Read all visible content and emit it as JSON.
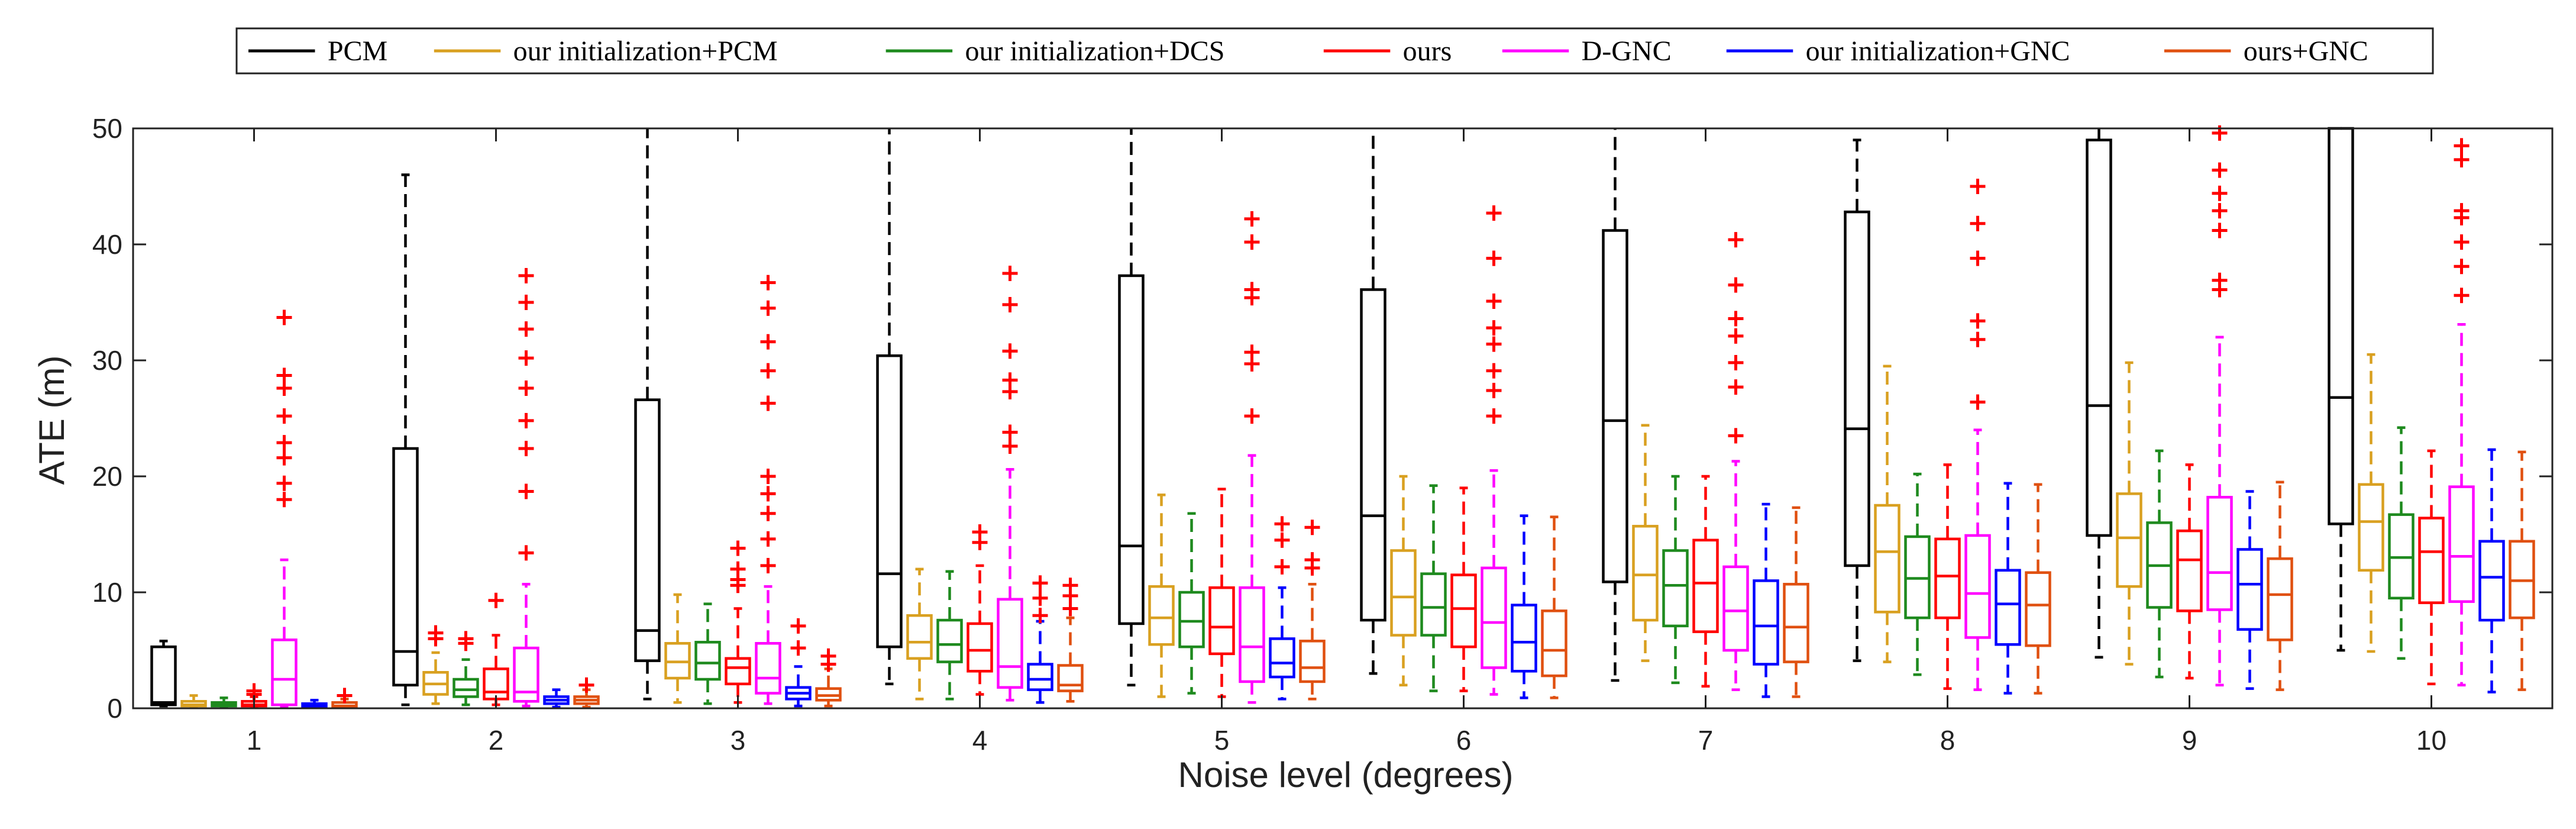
{
  "chart_data": {
    "type": "boxplot",
    "xlabel": "Noise level (degrees)",
    "ylabel": "ATE (m)",
    "ylim": [
      0,
      50
    ],
    "yticks": [
      0,
      10,
      20,
      30,
      40,
      50
    ],
    "categories": [
      "1",
      "2",
      "3",
      "4",
      "5",
      "6",
      "7",
      "8",
      "9",
      "10"
    ],
    "legend_position": "top-outside",
    "series": [
      {
        "name": "PCM",
        "color": "#000000",
        "boxes": [
          {
            "min": 0.2,
            "q1": 0.3,
            "median": 0.5,
            "q3": 5.3,
            "max": 5.8,
            "outliers": []
          },
          {
            "min": 0.3,
            "q1": 2.0,
            "median": 4.9,
            "q3": 22.4,
            "max": 46.0,
            "outliers": []
          },
          {
            "min": 0.8,
            "q1": 4.1,
            "median": 6.7,
            "q3": 26.6,
            "max": 50,
            "outliers": []
          },
          {
            "min": 2.1,
            "q1": 5.3,
            "median": 11.6,
            "q3": 30.4,
            "max": 50,
            "outliers": []
          },
          {
            "min": 2.0,
            "q1": 7.3,
            "median": 14.0,
            "q3": 37.3,
            "max": 50,
            "outliers": []
          },
          {
            "min": 3.0,
            "q1": 7.6,
            "median": 16.6,
            "q3": 36.1,
            "max": 50,
            "outliers": []
          },
          {
            "min": 2.4,
            "q1": 10.9,
            "median": 24.8,
            "q3": 41.2,
            "max": 50,
            "outliers": []
          },
          {
            "min": 4.1,
            "q1": 12.3,
            "median": 24.1,
            "q3": 42.8,
            "max": 49.0,
            "outliers": []
          },
          {
            "min": 4.4,
            "q1": 14.9,
            "median": 26.1,
            "q3": 49.0,
            "max": 50,
            "outliers": []
          },
          {
            "min": 5.0,
            "q1": 15.9,
            "median": 26.8,
            "q3": 50,
            "max": 50,
            "outliers": []
          }
        ]
      },
      {
        "name": "our initialization+PCM",
        "color": "#d9a020",
        "boxes": [
          {
            "min": 0.1,
            "q1": 0.2,
            "median": 0.3,
            "q3": 0.6,
            "max": 1.1,
            "outliers": []
          },
          {
            "min": 0.4,
            "q1": 1.2,
            "median": 2.1,
            "q3": 3.1,
            "max": 4.8,
            "outliers": [
              6.0,
              6.5
            ]
          },
          {
            "min": 0.5,
            "q1": 2.6,
            "median": 4.0,
            "q3": 5.6,
            "max": 9.8,
            "outliers": []
          },
          {
            "min": 0.8,
            "q1": 4.3,
            "median": 5.7,
            "q3": 8.0,
            "max": 12.0,
            "outliers": []
          },
          {
            "min": 1.0,
            "q1": 5.5,
            "median": 7.8,
            "q3": 10.5,
            "max": 18.4,
            "outliers": []
          },
          {
            "min": 2.0,
            "q1": 6.3,
            "median": 9.6,
            "q3": 13.6,
            "max": 20.0,
            "outliers": []
          },
          {
            "min": 4.1,
            "q1": 7.6,
            "median": 11.5,
            "q3": 15.7,
            "max": 24.4,
            "outliers": []
          },
          {
            "min": 4.0,
            "q1": 8.3,
            "median": 13.5,
            "q3": 17.5,
            "max": 29.5,
            "outliers": []
          },
          {
            "min": 3.8,
            "q1": 10.5,
            "median": 14.7,
            "q3": 18.5,
            "max": 29.8,
            "outliers": []
          },
          {
            "min": 4.9,
            "q1": 11.9,
            "median": 16.1,
            "q3": 19.3,
            "max": 30.5,
            "outliers": []
          }
        ]
      },
      {
        "name": "our initialization+DCS",
        "color": "#1e8a1e",
        "boxes": [
          {
            "min": 0.1,
            "q1": 0.2,
            "median": 0.3,
            "q3": 0.5,
            "max": 0.9,
            "outliers": []
          },
          {
            "min": 0.3,
            "q1": 1.0,
            "median": 1.6,
            "q3": 2.5,
            "max": 4.2,
            "outliers": [
              5.6,
              6.0
            ]
          },
          {
            "min": 0.4,
            "q1": 2.5,
            "median": 3.9,
            "q3": 5.7,
            "max": 9.0,
            "outliers": []
          },
          {
            "min": 0.8,
            "q1": 4.0,
            "median": 5.5,
            "q3": 7.6,
            "max": 11.8,
            "outliers": []
          },
          {
            "min": 1.3,
            "q1": 5.3,
            "median": 7.5,
            "q3": 10.0,
            "max": 16.8,
            "outliers": []
          },
          {
            "min": 1.5,
            "q1": 6.3,
            "median": 8.7,
            "q3": 11.6,
            "max": 19.2,
            "outliers": []
          },
          {
            "min": 2.2,
            "q1": 7.1,
            "median": 10.6,
            "q3": 13.6,
            "max": 20.0,
            "outliers": []
          },
          {
            "min": 2.9,
            "q1": 7.8,
            "median": 11.2,
            "q3": 14.8,
            "max": 20.2,
            "outliers": []
          },
          {
            "min": 2.7,
            "q1": 8.7,
            "median": 12.3,
            "q3": 16.0,
            "max": 22.2,
            "outliers": []
          },
          {
            "min": 4.3,
            "q1": 9.5,
            "median": 13.0,
            "q3": 16.7,
            "max": 24.2,
            "outliers": []
          }
        ]
      },
      {
        "name": "ours",
        "color": "#ff0000",
        "boxes": [
          {
            "min": 0.1,
            "q1": 0.2,
            "median": 0.3,
            "q3": 0.6,
            "max": 1.0,
            "outliers": [
              1.2,
              1.5
            ]
          },
          {
            "min": 0.3,
            "q1": 0.8,
            "median": 1.4,
            "q3": 3.4,
            "max": 6.3,
            "outliers": [
              9.3
            ]
          },
          {
            "min": 0.5,
            "q1": 2.1,
            "median": 3.5,
            "q3": 4.3,
            "max": 8.6,
            "outliers": [
              10.6,
              11.1,
              12.0,
              13.8
            ]
          },
          {
            "min": 1.2,
            "q1": 3.2,
            "median": 5.0,
            "q3": 7.3,
            "max": 12.3,
            "outliers": [
              14.3,
              15.2
            ]
          },
          {
            "min": 1.0,
            "q1": 4.7,
            "median": 7.0,
            "q3": 10.4,
            "max": 18.9,
            "outliers": []
          },
          {
            "min": 1.5,
            "q1": 5.3,
            "median": 8.6,
            "q3": 11.5,
            "max": 19.0,
            "outliers": []
          },
          {
            "min": 1.9,
            "q1": 6.6,
            "median": 10.8,
            "q3": 14.5,
            "max": 20.0,
            "outliers": []
          },
          {
            "min": 1.7,
            "q1": 7.8,
            "median": 11.4,
            "q3": 14.6,
            "max": 21.0,
            "outliers": []
          },
          {
            "min": 2.6,
            "q1": 8.4,
            "median": 12.8,
            "q3": 15.3,
            "max": 21.0,
            "outliers": []
          },
          {
            "min": 2.1,
            "q1": 9.1,
            "median": 13.5,
            "q3": 16.4,
            "max": 22.2,
            "outliers": []
          }
        ]
      },
      {
        "name": "D-GNC",
        "color": "#ff00ff",
        "boxes": [
          {
            "min": 0.1,
            "q1": 0.3,
            "median": 2.5,
            "q3": 5.9,
            "max": 12.8,
            "outliers": [
              18.0,
              19.4,
              21.6,
              22.9,
              25.2,
              27.6,
              28.7,
              33.7
            ]
          },
          {
            "min": 0.2,
            "q1": 0.6,
            "median": 1.4,
            "q3": 5.2,
            "max": 10.7,
            "outliers": [
              13.4,
              18.7,
              22.4,
              24.8,
              27.6,
              30.2,
              32.7,
              35.0,
              37.3
            ]
          },
          {
            "min": 0.4,
            "q1": 1.3,
            "median": 2.6,
            "q3": 5.6,
            "max": 10.5,
            "outliers": [
              12.3,
              14.6,
              16.8,
              18.5,
              20.0,
              26.3,
              29.1,
              31.6,
              34.5,
              36.7
            ]
          },
          {
            "min": 0.7,
            "q1": 1.8,
            "median": 3.6,
            "q3": 9.4,
            "max": 20.6,
            "outliers": [
              22.6,
              23.8,
              27.3,
              28.3,
              30.8,
              34.8,
              37.5
            ]
          },
          {
            "min": 0.5,
            "q1": 2.3,
            "median": 5.3,
            "q3": 10.4,
            "max": 21.8,
            "outliers": [
              25.2,
              29.7,
              30.7,
              35.4,
              36.1,
              40.2,
              42.2
            ]
          },
          {
            "min": 1.2,
            "q1": 3.5,
            "median": 7.4,
            "q3": 12.1,
            "max": 20.5,
            "outliers": [
              25.2,
              27.4,
              29.1,
              31.4,
              32.8,
              35.1,
              38.8,
              42.7
            ]
          },
          {
            "min": 1.6,
            "q1": 5.0,
            "median": 8.4,
            "q3": 12.2,
            "max": 21.3,
            "outliers": [
              23.5,
              27.7,
              29.8,
              32.1,
              33.6,
              36.5,
              40.4
            ]
          },
          {
            "min": 1.6,
            "q1": 6.1,
            "median": 9.9,
            "q3": 14.9,
            "max": 24.0,
            "outliers": [
              26.4,
              31.8,
              33.4,
              38.8,
              41.8,
              45.0
            ]
          },
          {
            "min": 2.0,
            "q1": 8.5,
            "median": 11.7,
            "q3": 18.2,
            "max": 32.0,
            "outliers": [
              36.1,
              36.9,
              41.2,
              42.9,
              44.4,
              46.4,
              49.6
            ]
          },
          {
            "min": 2.0,
            "q1": 9.2,
            "median": 13.1,
            "q3": 19.1,
            "max": 33.1,
            "outliers": [
              35.6,
              38.1,
              40.2,
              42.3,
              42.9,
              47.3,
              48.5
            ]
          }
        ]
      },
      {
        "name": "our initialization+GNC",
        "color": "#0000ff",
        "boxes": [
          {
            "min": 0.05,
            "q1": 0.1,
            "median": 0.2,
            "q3": 0.4,
            "max": 0.7,
            "outliers": []
          },
          {
            "min": 0.1,
            "q1": 0.4,
            "median": 0.7,
            "q3": 1.0,
            "max": 1.6,
            "outliers": []
          },
          {
            "min": 0.2,
            "q1": 0.8,
            "median": 1.3,
            "q3": 1.8,
            "max": 3.6,
            "outliers": [
              5.2,
              7.1
            ]
          },
          {
            "min": 0.5,
            "q1": 1.6,
            "median": 2.5,
            "q3": 3.8,
            "max": 7.5,
            "outliers": [
              8.0,
              9.5,
              10.8
            ]
          },
          {
            "min": 0.8,
            "q1": 2.7,
            "median": 3.9,
            "q3": 6.0,
            "max": 10.4,
            "outliers": [
              12.2,
              14.5,
              15.9
            ]
          },
          {
            "min": 0.9,
            "q1": 3.2,
            "median": 5.7,
            "q3": 8.9,
            "max": 16.6,
            "outliers": []
          },
          {
            "min": 1.0,
            "q1": 3.8,
            "median": 7.1,
            "q3": 11.0,
            "max": 17.6,
            "outliers": []
          },
          {
            "min": 1.3,
            "q1": 5.5,
            "median": 9.0,
            "q3": 11.9,
            "max": 19.4,
            "outliers": []
          },
          {
            "min": 1.7,
            "q1": 6.8,
            "median": 10.7,
            "q3": 13.7,
            "max": 18.7,
            "outliers": []
          },
          {
            "min": 1.4,
            "q1": 7.6,
            "median": 11.3,
            "q3": 14.4,
            "max": 22.3,
            "outliers": []
          }
        ]
      },
      {
        "name": "ours+GNC",
        "color": "#e05010",
        "boxes": [
          {
            "min": 0.05,
            "q1": 0.1,
            "median": 0.2,
            "q3": 0.5,
            "max": 0.8,
            "outliers": [
              1.1
            ]
          },
          {
            "min": 0.1,
            "q1": 0.4,
            "median": 0.7,
            "q3": 1.0,
            "max": 1.6,
            "outliers": [
              2.0
            ]
          },
          {
            "min": 0.2,
            "q1": 0.7,
            "median": 1.1,
            "q3": 1.7,
            "max": 3.4,
            "outliers": [
              3.8,
              4.5
            ]
          },
          {
            "min": 0.6,
            "q1": 1.5,
            "median": 2.0,
            "q3": 3.7,
            "max": 7.8,
            "outliers": [
              8.6,
              9.7,
              10.6
            ]
          },
          {
            "min": 0.8,
            "q1": 2.3,
            "median": 3.5,
            "q3": 5.8,
            "max": 10.7,
            "outliers": [
              12.1,
              12.8,
              15.6
            ]
          },
          {
            "min": 0.9,
            "q1": 2.8,
            "median": 5.0,
            "q3": 8.4,
            "max": 16.5,
            "outliers": []
          },
          {
            "min": 1.0,
            "q1": 4.0,
            "median": 7.0,
            "q3": 10.7,
            "max": 17.3,
            "outliers": []
          },
          {
            "min": 1.3,
            "q1": 5.4,
            "median": 8.9,
            "q3": 11.7,
            "max": 19.3,
            "outliers": []
          },
          {
            "min": 1.6,
            "q1": 5.9,
            "median": 9.8,
            "q3": 12.9,
            "max": 19.5,
            "outliers": []
          },
          {
            "min": 1.6,
            "q1": 7.8,
            "median": 11.0,
            "q3": 14.4,
            "max": 22.1,
            "outliers": []
          }
        ]
      }
    ]
  }
}
